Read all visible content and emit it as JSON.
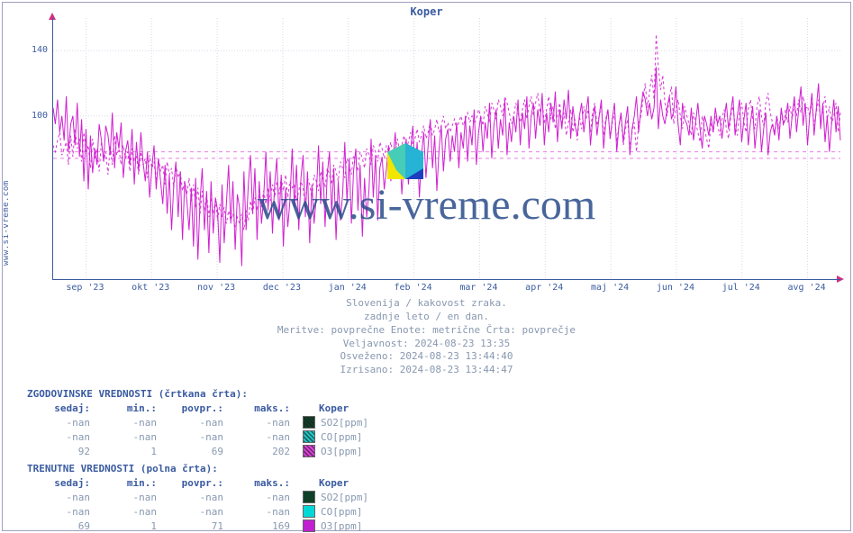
{
  "title": "Koper",
  "ylabel": "www.si-vreme.com",
  "watermark": "www.si-vreme.com",
  "chart": {
    "type": "line",
    "background_color": "#ffffff",
    "grid_color": "#d8d8e8",
    "axis_color": "#3a5ba0",
    "arrow_color": "#d03080",
    "y": {
      "lim": [
        0,
        160
      ],
      "ticks": [
        100,
        140
      ],
      "grid_step": 20
    },
    "x": {
      "labels": [
        "sep '23",
        "okt '23",
        "nov '23",
        "dec '23",
        "jan '24",
        "feb '24",
        "mar '24",
        "apr '24",
        "maj '24",
        "jun '24",
        "jul '24",
        "avg '24"
      ]
    },
    "thresholds": [
      {
        "value": 74,
        "color": "#e060e0"
      },
      {
        "value": 78,
        "color": "#e060e0"
      }
    ],
    "series_solid": {
      "color": "#d020d0",
      "width": 1,
      "dash": "none",
      "values": [
        105,
        95,
        110,
        90,
        100,
        85,
        112,
        78,
        95,
        100,
        82,
        108,
        75,
        98,
        60,
        92,
        55,
        88,
        65,
        80,
        70,
        95,
        85,
        72,
        94,
        88,
        76,
        102,
        68,
        90,
        80,
        96,
        62,
        78,
        85,
        70,
        92,
        58,
        84,
        66,
        90,
        72,
        60,
        78,
        50,
        68,
        82,
        55,
        74,
        60,
        46,
        70,
        40,
        64,
        30,
        58,
        72,
        38,
        66,
        24,
        60,
        48,
        30,
        56,
        20,
        62,
        12,
        48,
        68,
        30,
        54,
        16,
        60,
        28,
        50,
        42,
        10,
        58,
        22,
        46,
        70,
        34,
        60,
        18,
        52,
        44,
        8,
        66,
        30,
        58,
        76,
        40,
        68,
        24,
        60,
        34,
        50,
        78,
        42,
        66,
        28,
        58,
        74,
        36,
        64,
        20,
        56,
        32,
        48,
        80,
        44,
        70,
        30,
        62,
        76,
        38,
        66,
        22,
        58,
        34,
        50,
        82,
        46,
        72,
        32,
        64,
        78,
        40,
        68,
        24,
        60,
        36,
        52,
        84,
        48,
        74,
        34,
        66,
        80,
        42,
        70,
        26,
        62,
        38,
        54,
        86,
        50,
        76,
        36,
        68,
        75,
        55,
        68,
        82,
        60,
        74,
        90,
        66,
        80,
        52,
        72,
        86,
        58,
        78,
        94,
        64,
        84,
        50,
        76,
        90,
        62,
        82,
        98,
        68,
        88,
        54,
        80,
        94,
        66,
        86,
        92,
        72,
        88,
        78,
        96,
        68,
        90,
        80,
        100,
        72,
        94,
        82,
        104,
        70,
        90,
        100,
        78,
        96,
        86,
        108,
        74,
        94,
        104,
        80,
        98,
        88,
        110,
        76,
        96,
        84,
        100,
        90,
        110,
        82,
        102,
        92,
        112,
        80,
        100,
        108,
        86,
        104,
        94,
        114,
        82,
        102,
        90,
        108,
        96,
        115,
        84,
        104,
        92,
        110,
        98,
        116,
        86,
        106,
        94,
        88,
        100,
        108,
        90,
        102,
        112,
        82,
        98,
        106,
        88,
        100,
        110,
        80,
        96,
        104,
        86,
        98,
        108,
        78,
        94,
        102,
        84,
        96,
        106,
        76,
        92,
        100,
        112,
        90,
        104,
        115,
        110,
        100,
        108,
        98,
        105,
        130,
        92,
        110,
        100,
        95,
        105,
        112,
        98,
        103,
        118,
        95,
        82,
        108,
        98,
        95,
        88,
        105,
        85,
        96,
        108,
        92,
        80,
        100,
        95,
        88,
        100,
        90,
        105,
        95,
        100,
        86,
        98,
        108,
        92,
        102,
        112,
        88,
        100,
        110,
        84,
        98,
        108,
        82,
        96,
        106,
        80,
        94,
        104,
        78,
        92,
        102,
        76,
        90,
        95,
        88,
        100,
        85,
        105,
        95,
        98,
        108,
        86,
        100,
        112,
        90,
        104,
        118,
        94,
        108,
        82,
        100,
        114,
        88,
        104,
        120,
        92,
        108,
        84,
        100,
        78,
        96,
        110,
        90,
        106,
        85
      ]
    },
    "series_dashed": {
      "color": "#d020d0",
      "width": 1,
      "dash": "3,3",
      "values": [
        82,
        78,
        85,
        90,
        76,
        80,
        84,
        70,
        88,
        75,
        92,
        80,
        86,
        72,
        90,
        78,
        82,
        68,
        86,
        74,
        80,
        66,
        84,
        72,
        78,
        64,
        82,
        70,
        88,
        76,
        80,
        70,
        82,
        74,
        78,
        66,
        80,
        72,
        76,
        64,
        78,
        70,
        74,
        62,
        76,
        68,
        72,
        60,
        74,
        66,
        70,
        58,
        72,
        64,
        68,
        56,
        70,
        62,
        66,
        54,
        60,
        52,
        62,
        48,
        58,
        44,
        56,
        40,
        54,
        42,
        52,
        38,
        50,
        40,
        48,
        36,
        46,
        38,
        44,
        34,
        42,
        36,
        40,
        32,
        38,
        34,
        40,
        30,
        42,
        36,
        48,
        40,
        50,
        42,
        52,
        44,
        54,
        46,
        56,
        48,
        58,
        50,
        60,
        52,
        62,
        54,
        64,
        50,
        60,
        56,
        58,
        48,
        54,
        60,
        56,
        44,
        62,
        58,
        50,
        64,
        60,
        54,
        66,
        62,
        56,
        68,
        64,
        58,
        70,
        66,
        60,
        72,
        68,
        62,
        74,
        70,
        64,
        76,
        72,
        66,
        78,
        74,
        68,
        80,
        76,
        70,
        82,
        78,
        72,
        84,
        80,
        74,
        82,
        78,
        84,
        76,
        80,
        86,
        78,
        82,
        88,
        80,
        84,
        90,
        82,
        86,
        92,
        84,
        88,
        94,
        86,
        90,
        96,
        88,
        92,
        98,
        90,
        94,
        100,
        92,
        96,
        90,
        94,
        98,
        92,
        96,
        100,
        94,
        98,
        102,
        96,
        100,
        95,
        98,
        104,
        100,
        94,
        106,
        102,
        96,
        108,
        104,
        98,
        110,
        106,
        100,
        112,
        108,
        102,
        95,
        100,
        108,
        102,
        96,
        104,
        110,
        98,
        106,
        112,
        100,
        108,
        114,
        102,
        110,
        95,
        104,
        112,
        98,
        106,
        92,
        100,
        108,
        94,
        102,
        88,
        96,
        104,
        90,
        98,
        85,
        100,
        92,
        106,
        98,
        104,
        90,
        102,
        108,
        94,
        100,
        106,
        88,
        98,
        104,
        86,
        96,
        102,
        84,
        94,
        100,
        82,
        92,
        98,
        80,
        90,
        96,
        78,
        95,
        100,
        110,
        120,
        105,
        115,
        125,
        110,
        150,
        130,
        116,
        125,
        108,
        100,
        112,
        118,
        95,
        105,
        110,
        100,
        92,
        106,
        100,
        95,
        88,
        102,
        96,
        90,
        84,
        100,
        92,
        86,
        80,
        96,
        90,
        100,
        94,
        88,
        98,
        104,
        92,
        86,
        100,
        106,
        94,
        88,
        102,
        108,
        96,
        90,
        104,
        110,
        98,
        92,
        106,
        112,
        100,
        94,
        108,
        114,
        102,
        96,
        90,
        100,
        92,
        102,
        94,
        104,
        96,
        106,
        98,
        108,
        100,
        110,
        102,
        112,
        104,
        106,
        100,
        108,
        94,
        102,
        110,
        96,
        104,
        112,
        98,
        106,
        95,
        100,
        108,
        90,
        102
      ]
    }
  },
  "caption": {
    "line1": "Slovenija / kakovost zraka.",
    "line2": "zadnje leto / en dan.",
    "line3": "Meritve: povprečne  Enote: metrične  Črta: povprečje",
    "line4": "Veljavnost: 2024-08-23 13:35",
    "line5": "Osveženo: 2024-08-23 13:44:40",
    "line6": "Izrisano: 2024-08-23 13:44:47"
  },
  "legend": {
    "hist_title": "ZGODOVINSKE VREDNOSTI (črtkana črta):",
    "curr_title": "TRENUTNE VREDNOSTI (polna črta):",
    "columns": {
      "now": "sedaj:",
      "min": "min.:",
      "avg": "povpr.:",
      "max": "maks.:",
      "station": "Koper"
    },
    "hist_rows": [
      {
        "now": "-nan",
        "min": "-nan",
        "avg": "-nan",
        "max": "-nan",
        "color": "#104028",
        "label": "SO2[ppm]"
      },
      {
        "now": "-nan",
        "min": "-nan",
        "avg": "-nan",
        "max": "-nan",
        "color": "#20c8c8",
        "label": "CO[ppm]"
      },
      {
        "now": "92",
        "min": "1",
        "avg": "69",
        "max": "202",
        "color": "#e040e0",
        "label": "O3[ppm]"
      }
    ],
    "curr_rows": [
      {
        "now": "-nan",
        "min": "-nan",
        "avg": "-nan",
        "max": "-nan",
        "color": "#104028",
        "label": "SO2[ppm]"
      },
      {
        "now": "-nan",
        "min": "-nan",
        "avg": "-nan",
        "max": "-nan",
        "color": "#00d8d8",
        "label": "CO[ppm]"
      },
      {
        "now": "69",
        "min": "1",
        "avg": "71",
        "max": "169",
        "color": "#c020d0",
        "label": "O3[ppm]"
      }
    ]
  }
}
